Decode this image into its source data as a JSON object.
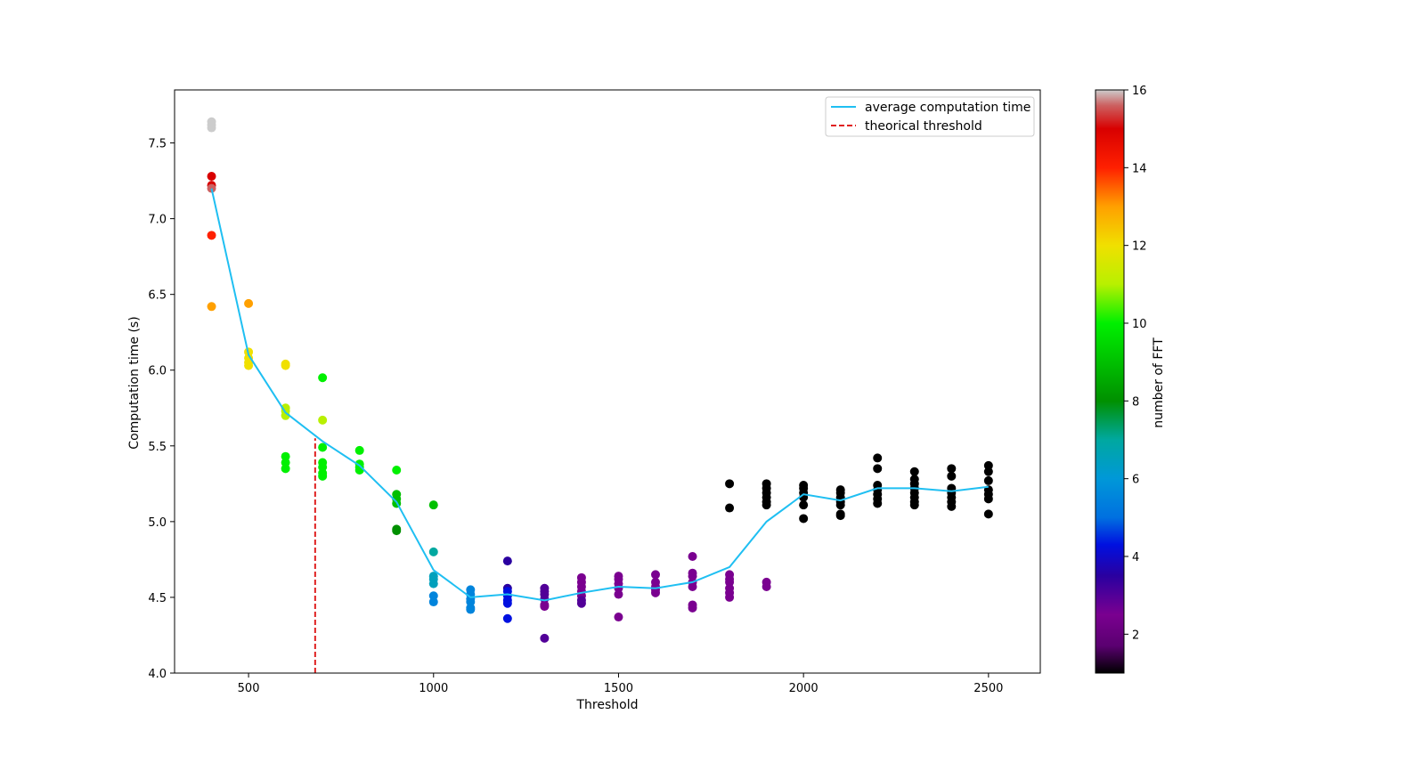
{
  "chart_data": {
    "type": "scatter",
    "title": "",
    "xlabel": "Threshold",
    "ylabel": "Computation time (s)",
    "xlim": [
      300,
      2640
    ],
    "ylim": [
      4.0,
      7.85
    ],
    "x_ticks": [
      500,
      1000,
      1500,
      2000,
      2500
    ],
    "y_ticks": [
      4.0,
      4.5,
      5.0,
      5.5,
      6.0,
      6.5,
      7.0,
      7.5
    ],
    "x_tick_labels": [
      "500",
      "1000",
      "1500",
      "2000",
      "2500"
    ],
    "y_tick_labels": [
      "4.0",
      "4.5",
      "5.0",
      "5.5",
      "6.0",
      "6.5",
      "7.0",
      "7.5"
    ],
    "grid": false,
    "legend": {
      "placement": "upper right",
      "entries": [
        {
          "label": "average computation time",
          "color": "#1fbff2",
          "style": "solid"
        },
        {
          "label": "theorical threshold",
          "color": "#e02020",
          "style": "dashed"
        }
      ]
    },
    "colorbar": {
      "label": "number of FFT",
      "min": 1,
      "max": 16,
      "ticks": [
        2,
        4,
        6,
        8,
        10,
        12,
        14,
        16
      ],
      "tick_labels": [
        "2",
        "4",
        "6",
        "8",
        "10",
        "12",
        "14",
        "16"
      ],
      "colormap": "nipy_spectral",
      "stops": [
        {
          "v": 1,
          "c": "#000000"
        },
        {
          "v": 1.7,
          "c": "#5a0070"
        },
        {
          "v": 2.5,
          "c": "#7a0090"
        },
        {
          "v": 3.5,
          "c": "#2a00a0"
        },
        {
          "v": 4.3,
          "c": "#0010e0"
        },
        {
          "v": 5,
          "c": "#0070e0"
        },
        {
          "v": 6,
          "c": "#0098d8"
        },
        {
          "v": 7,
          "c": "#00a8a0"
        },
        {
          "v": 8,
          "c": "#009000"
        },
        {
          "v": 9,
          "c": "#00c000"
        },
        {
          "v": 10,
          "c": "#00f000"
        },
        {
          "v": 11,
          "c": "#b8f000"
        },
        {
          "v": 12,
          "c": "#f0e000"
        },
        {
          "v": 13,
          "c": "#ffa000"
        },
        {
          "v": 14,
          "c": "#ff2000"
        },
        {
          "v": 15,
          "c": "#d80000"
        },
        {
          "v": 15.6,
          "c": "#cc6060"
        },
        {
          "v": 16,
          "c": "#cccccc"
        }
      ]
    },
    "average_line": {
      "name": "average computation time",
      "x": [
        400,
        500,
        600,
        700,
        800,
        900,
        1000,
        1100,
        1200,
        1300,
        1400,
        1500,
        1600,
        1700,
        1800,
        1900,
        2000,
        2100,
        2200,
        2300,
        2400,
        2500
      ],
      "y": [
        7.2,
        6.1,
        5.72,
        5.53,
        5.37,
        5.13,
        4.68,
        4.5,
        4.52,
        4.48,
        4.53,
        4.57,
        4.56,
        4.6,
        4.7,
        5.0,
        5.18,
        5.14,
        5.22,
        5.22,
        5.2,
        5.23
      ]
    },
    "threshold_line": {
      "name": "theorical threshold",
      "x": 680,
      "y_top": 5.55
    },
    "points": [
      {
        "x": 400,
        "y": 7.64,
        "n": 16
      },
      {
        "x": 400,
        "y": 7.62,
        "n": 16
      },
      {
        "x": 400,
        "y": 7.6,
        "n": 16
      },
      {
        "x": 400,
        "y": 7.28,
        "n": 15
      },
      {
        "x": 400,
        "y": 7.22,
        "n": 15
      },
      {
        "x": 400,
        "y": 7.2,
        "n": 15.6
      },
      {
        "x": 400,
        "y": 6.89,
        "n": 14
      },
      {
        "x": 400,
        "y": 6.42,
        "n": 13
      },
      {
        "x": 500,
        "y": 6.44,
        "n": 13
      },
      {
        "x": 500,
        "y": 6.12,
        "n": 12
      },
      {
        "x": 500,
        "y": 6.08,
        "n": 12
      },
      {
        "x": 500,
        "y": 6.05,
        "n": 12
      },
      {
        "x": 500,
        "y": 6.03,
        "n": 12
      },
      {
        "x": 600,
        "y": 6.04,
        "n": 12
      },
      {
        "x": 600,
        "y": 6.03,
        "n": 12
      },
      {
        "x": 600,
        "y": 5.75,
        "n": 11
      },
      {
        "x": 600,
        "y": 5.73,
        "n": 11
      },
      {
        "x": 600,
        "y": 5.7,
        "n": 11
      },
      {
        "x": 600,
        "y": 5.43,
        "n": 10
      },
      {
        "x": 600,
        "y": 5.39,
        "n": 10
      },
      {
        "x": 600,
        "y": 5.35,
        "n": 10
      },
      {
        "x": 700,
        "y": 5.95,
        "n": 10
      },
      {
        "x": 700,
        "y": 5.67,
        "n": 11
      },
      {
        "x": 700,
        "y": 5.49,
        "n": 10
      },
      {
        "x": 700,
        "y": 5.39,
        "n": 10
      },
      {
        "x": 700,
        "y": 5.36,
        "n": 10
      },
      {
        "x": 700,
        "y": 5.32,
        "n": 10
      },
      {
        "x": 700,
        "y": 5.3,
        "n": 10
      },
      {
        "x": 800,
        "y": 5.47,
        "n": 10
      },
      {
        "x": 800,
        "y": 5.38,
        "n": 10
      },
      {
        "x": 800,
        "y": 5.36,
        "n": 10
      },
      {
        "x": 800,
        "y": 5.34,
        "n": 10
      },
      {
        "x": 900,
        "y": 5.34,
        "n": 10
      },
      {
        "x": 900,
        "y": 5.18,
        "n": 9
      },
      {
        "x": 900,
        "y": 5.15,
        "n": 9
      },
      {
        "x": 900,
        "y": 5.12,
        "n": 9
      },
      {
        "x": 900,
        "y": 4.95,
        "n": 8
      },
      {
        "x": 900,
        "y": 4.94,
        "n": 8
      },
      {
        "x": 1000,
        "y": 5.11,
        "n": 9
      },
      {
        "x": 1000,
        "y": 4.8,
        "n": 7
      },
      {
        "x": 1000,
        "y": 4.64,
        "n": 6.5
      },
      {
        "x": 1000,
        "y": 4.62,
        "n": 6.5
      },
      {
        "x": 1000,
        "y": 4.59,
        "n": 6.5
      },
      {
        "x": 1000,
        "y": 4.51,
        "n": 5.5
      },
      {
        "x": 1000,
        "y": 4.47,
        "n": 5.5
      },
      {
        "x": 1100,
        "y": 4.55,
        "n": 5.5
      },
      {
        "x": 1100,
        "y": 4.52,
        "n": 5.5
      },
      {
        "x": 1100,
        "y": 4.49,
        "n": 5.5
      },
      {
        "x": 1100,
        "y": 4.47,
        "n": 5.5
      },
      {
        "x": 1100,
        "y": 4.43,
        "n": 5.5
      },
      {
        "x": 1100,
        "y": 4.42,
        "n": 5.5
      },
      {
        "x": 1200,
        "y": 4.74,
        "n": 3.5
      },
      {
        "x": 1200,
        "y": 4.56,
        "n": 3.5
      },
      {
        "x": 1200,
        "y": 4.54,
        "n": 4.3
      },
      {
        "x": 1200,
        "y": 4.51,
        "n": 4.3
      },
      {
        "x": 1200,
        "y": 4.48,
        "n": 4.3
      },
      {
        "x": 1200,
        "y": 4.46,
        "n": 4.3
      },
      {
        "x": 1200,
        "y": 4.36,
        "n": 4.3
      },
      {
        "x": 1300,
        "y": 4.56,
        "n": 3
      },
      {
        "x": 1300,
        "y": 4.54,
        "n": 3
      },
      {
        "x": 1300,
        "y": 4.52,
        "n": 3
      },
      {
        "x": 1300,
        "y": 4.49,
        "n": 3
      },
      {
        "x": 1300,
        "y": 4.45,
        "n": 2.5
      },
      {
        "x": 1300,
        "y": 4.44,
        "n": 2.5
      },
      {
        "x": 1300,
        "y": 4.23,
        "n": 3
      },
      {
        "x": 1400,
        "y": 4.63,
        "n": 2.5
      },
      {
        "x": 1400,
        "y": 4.6,
        "n": 2.5
      },
      {
        "x": 1400,
        "y": 4.57,
        "n": 2.5
      },
      {
        "x": 1400,
        "y": 4.54,
        "n": 2.5
      },
      {
        "x": 1400,
        "y": 4.51,
        "n": 2.5
      },
      {
        "x": 1400,
        "y": 4.48,
        "n": 3
      },
      {
        "x": 1400,
        "y": 4.46,
        "n": 3
      },
      {
        "x": 1500,
        "y": 4.64,
        "n": 2.5
      },
      {
        "x": 1500,
        "y": 4.62,
        "n": 2.5
      },
      {
        "x": 1500,
        "y": 4.59,
        "n": 2.5
      },
      {
        "x": 1500,
        "y": 4.56,
        "n": 2.5
      },
      {
        "x": 1500,
        "y": 4.52,
        "n": 2.5
      },
      {
        "x": 1500,
        "y": 4.37,
        "n": 2.5
      },
      {
        "x": 1600,
        "y": 4.65,
        "n": 2.5
      },
      {
        "x": 1600,
        "y": 4.6,
        "n": 2.5
      },
      {
        "x": 1600,
        "y": 4.57,
        "n": 2.5
      },
      {
        "x": 1600,
        "y": 4.55,
        "n": 2.5
      },
      {
        "x": 1600,
        "y": 4.53,
        "n": 2.5
      },
      {
        "x": 1700,
        "y": 4.77,
        "n": 2.5
      },
      {
        "x": 1700,
        "y": 4.66,
        "n": 2.5
      },
      {
        "x": 1700,
        "y": 4.64,
        "n": 2.5
      },
      {
        "x": 1700,
        "y": 4.6,
        "n": 2.5
      },
      {
        "x": 1700,
        "y": 4.57,
        "n": 2.5
      },
      {
        "x": 1700,
        "y": 4.45,
        "n": 2.5
      },
      {
        "x": 1700,
        "y": 4.43,
        "n": 2.5
      },
      {
        "x": 1800,
        "y": 4.65,
        "n": 2.5
      },
      {
        "x": 1800,
        "y": 4.62,
        "n": 2.5
      },
      {
        "x": 1800,
        "y": 4.6,
        "n": 2.5
      },
      {
        "x": 1800,
        "y": 4.56,
        "n": 2.5
      },
      {
        "x": 1800,
        "y": 4.53,
        "n": 2.5
      },
      {
        "x": 1800,
        "y": 4.5,
        "n": 2.5
      },
      {
        "x": 1800,
        "y": 5.25,
        "n": 1
      },
      {
        "x": 1800,
        "y": 5.09,
        "n": 1
      },
      {
        "x": 1900,
        "y": 4.6,
        "n": 2.5
      },
      {
        "x": 1900,
        "y": 4.57,
        "n": 2.5
      },
      {
        "x": 1900,
        "y": 5.25,
        "n": 1
      },
      {
        "x": 1900,
        "y": 5.22,
        "n": 1
      },
      {
        "x": 1900,
        "y": 5.19,
        "n": 1
      },
      {
        "x": 1900,
        "y": 5.16,
        "n": 1
      },
      {
        "x": 1900,
        "y": 5.13,
        "n": 1
      },
      {
        "x": 1900,
        "y": 5.11,
        "n": 1
      },
      {
        "x": 2000,
        "y": 5.24,
        "n": 1
      },
      {
        "x": 2000,
        "y": 5.22,
        "n": 1
      },
      {
        "x": 2000,
        "y": 5.19,
        "n": 1
      },
      {
        "x": 2000,
        "y": 5.16,
        "n": 1
      },
      {
        "x": 2000,
        "y": 5.11,
        "n": 1
      },
      {
        "x": 2000,
        "y": 5.02,
        "n": 1
      },
      {
        "x": 2100,
        "y": 5.21,
        "n": 1
      },
      {
        "x": 2100,
        "y": 5.19,
        "n": 1
      },
      {
        "x": 2100,
        "y": 5.16,
        "n": 1
      },
      {
        "x": 2100,
        "y": 5.13,
        "n": 1
      },
      {
        "x": 2100,
        "y": 5.11,
        "n": 1
      },
      {
        "x": 2100,
        "y": 5.05,
        "n": 1
      },
      {
        "x": 2100,
        "y": 5.04,
        "n": 1
      },
      {
        "x": 2200,
        "y": 5.42,
        "n": 1
      },
      {
        "x": 2200,
        "y": 5.35,
        "n": 1
      },
      {
        "x": 2200,
        "y": 5.24,
        "n": 1
      },
      {
        "x": 2200,
        "y": 5.21,
        "n": 1
      },
      {
        "x": 2200,
        "y": 5.18,
        "n": 1
      },
      {
        "x": 2200,
        "y": 5.15,
        "n": 1
      },
      {
        "x": 2200,
        "y": 5.12,
        "n": 1
      },
      {
        "x": 2300,
        "y": 5.33,
        "n": 1
      },
      {
        "x": 2300,
        "y": 5.28,
        "n": 1
      },
      {
        "x": 2300,
        "y": 5.25,
        "n": 1
      },
      {
        "x": 2300,
        "y": 5.22,
        "n": 1
      },
      {
        "x": 2300,
        "y": 5.19,
        "n": 1
      },
      {
        "x": 2300,
        "y": 5.16,
        "n": 1
      },
      {
        "x": 2300,
        "y": 5.13,
        "n": 1
      },
      {
        "x": 2300,
        "y": 5.11,
        "n": 1
      },
      {
        "x": 2400,
        "y": 5.35,
        "n": 1
      },
      {
        "x": 2400,
        "y": 5.3,
        "n": 1
      },
      {
        "x": 2400,
        "y": 5.22,
        "n": 1
      },
      {
        "x": 2400,
        "y": 5.19,
        "n": 1
      },
      {
        "x": 2400,
        "y": 5.16,
        "n": 1
      },
      {
        "x": 2400,
        "y": 5.13,
        "n": 1
      },
      {
        "x": 2400,
        "y": 5.1,
        "n": 1
      },
      {
        "x": 2500,
        "y": 5.37,
        "n": 1
      },
      {
        "x": 2500,
        "y": 5.33,
        "n": 1
      },
      {
        "x": 2500,
        "y": 5.27,
        "n": 1
      },
      {
        "x": 2500,
        "y": 5.21,
        "n": 1
      },
      {
        "x": 2500,
        "y": 5.18,
        "n": 1
      },
      {
        "x": 2500,
        "y": 5.15,
        "n": 1
      },
      {
        "x": 2500,
        "y": 5.05,
        "n": 1
      }
    ]
  }
}
